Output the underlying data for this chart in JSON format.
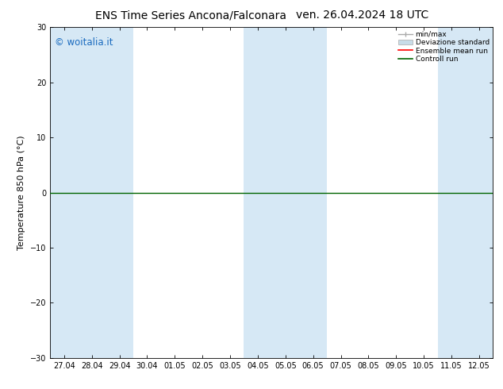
{
  "title_left": "ENS Time Series Ancona/Falconara",
  "title_right": "ven. 26.04.2024 18 UTC",
  "ylabel": "Temperature 850 hPa (°C)",
  "ylim": [
    -30,
    30
  ],
  "yticks": [
    -30,
    -20,
    -10,
    0,
    10,
    20,
    30
  ],
  "x_labels": [
    "27.04",
    "28.04",
    "29.04",
    "30.04",
    "01.05",
    "02.05",
    "03.05",
    "04.05",
    "05.05",
    "06.05",
    "07.05",
    "08.05",
    "09.05",
    "10.05",
    "11.05",
    "12.05"
  ],
  "background_color": "#ffffff",
  "plot_bg_color": "#ffffff",
  "shaded_band_color": "#d6e8f5",
  "shaded_columns": [
    0,
    1,
    2,
    7,
    8,
    9,
    14,
    15
  ],
  "hline_y": 0,
  "hline_color": "#006400",
  "legend_entries": [
    "min/max",
    "Deviazione standard",
    "Ensemble mean run",
    "Controll run"
  ],
  "watermark": "© woitalia.it",
  "watermark_color": "#1a6bbf",
  "title_fontsize": 10,
  "label_fontsize": 8,
  "tick_fontsize": 7
}
